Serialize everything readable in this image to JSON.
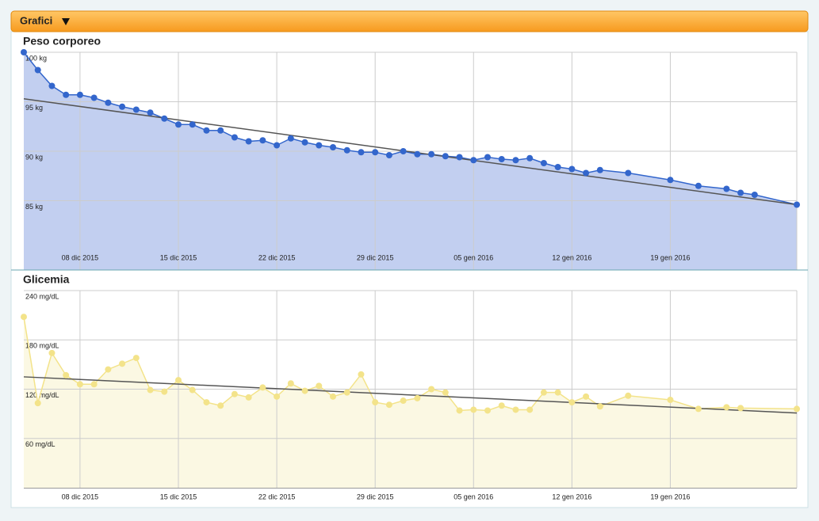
{
  "header": {
    "title": "Grafici"
  },
  "chart_data": [
    {
      "type": "line",
      "title": "Peso corporeo",
      "color": "#3366cc",
      "fill_color": "#c2cff0",
      "trend_color": "#555555",
      "x": [
        "2015-12-04",
        "2015-12-05",
        "2015-12-06",
        "2015-12-07",
        "2015-12-08",
        "2015-12-09",
        "2015-12-10",
        "2015-12-11",
        "2015-12-12",
        "2015-12-13",
        "2015-12-14",
        "2015-12-15",
        "2015-12-16",
        "2015-12-17",
        "2015-12-18",
        "2015-12-19",
        "2015-12-20",
        "2015-12-21",
        "2015-12-22",
        "2015-12-23",
        "2015-12-24",
        "2015-12-25",
        "2015-12-26",
        "2015-12-27",
        "2015-12-28",
        "2015-12-29",
        "2015-12-30",
        "2015-12-31",
        "2016-01-01",
        "2016-01-02",
        "2016-01-03",
        "2016-01-04",
        "2016-01-05",
        "2016-01-06",
        "2016-01-07",
        "2016-01-08",
        "2016-01-09",
        "2016-01-10",
        "2016-01-11",
        "2016-01-12",
        "2016-01-13",
        "2016-01-14",
        "2016-01-16",
        "2016-01-19",
        "2016-01-21",
        "2016-01-23",
        "2016-01-24",
        "2016-01-25",
        "2016-01-28"
      ],
      "values": [
        100,
        98.2,
        96.6,
        95.7,
        95.7,
        95.4,
        94.9,
        94.5,
        94.2,
        93.9,
        93.3,
        92.7,
        92.7,
        92.1,
        92.1,
        91.4,
        91.0,
        91.1,
        90.6,
        91.3,
        90.9,
        90.6,
        90.4,
        90.1,
        89.9,
        89.9,
        89.6,
        90.0,
        89.7,
        89.7,
        89.5,
        89.4,
        89.1,
        89.4,
        89.2,
        89.1,
        89.3,
        88.8,
        88.4,
        88.2,
        87.8,
        88.1,
        87.8,
        87.1,
        86.5,
        86.2,
        85.8,
        85.6,
        84.6
      ],
      "trend": [
        95.3,
        84.6
      ],
      "xlim": [
        "2015-12-04",
        "2016-01-28"
      ],
      "xticks": [
        {
          "value": "2015-12-08",
          "label": "08 dic 2015"
        },
        {
          "value": "2015-12-15",
          "label": "15 dic 2015"
        },
        {
          "value": "2015-12-22",
          "label": "22 dic 2015"
        },
        {
          "value": "2015-12-29",
          "label": "29 dic 2015"
        },
        {
          "value": "2016-01-05",
          "label": "05 gen 2016"
        },
        {
          "value": "2016-01-12",
          "label": "12 gen 2016"
        },
        {
          "value": "2016-01-19",
          "label": "19 gen 2016"
        }
      ],
      "ylim": [
        78,
        100
      ],
      "yticks": [
        {
          "value": 85,
          "label": "85 kg"
        },
        {
          "value": 90,
          "label": "90 kg"
        },
        {
          "value": 95,
          "label": "95 kg"
        },
        {
          "value": 100,
          "label": "100 kg"
        }
      ],
      "grid": true
    },
    {
      "type": "line",
      "title": "Glicemia",
      "color": "#f3e38a",
      "fill_color": "#fbf8e3",
      "trend_color": "#555555",
      "x": [
        "2015-12-04",
        "2015-12-05",
        "2015-12-06",
        "2015-12-07",
        "2015-12-08",
        "2015-12-09",
        "2015-12-10",
        "2015-12-11",
        "2015-12-12",
        "2015-12-13",
        "2015-12-14",
        "2015-12-15",
        "2015-12-16",
        "2015-12-17",
        "2015-12-18",
        "2015-12-19",
        "2015-12-20",
        "2015-12-21",
        "2015-12-22",
        "2015-12-23",
        "2015-12-24",
        "2015-12-25",
        "2015-12-26",
        "2015-12-27",
        "2015-12-28",
        "2015-12-29",
        "2015-12-30",
        "2015-12-31",
        "2016-01-01",
        "2016-01-02",
        "2016-01-03",
        "2016-01-04",
        "2016-01-05",
        "2016-01-06",
        "2016-01-07",
        "2016-01-08",
        "2016-01-09",
        "2016-01-10",
        "2016-01-11",
        "2016-01-12",
        "2016-01-13",
        "2016-01-14",
        "2016-01-16",
        "2016-01-19",
        "2016-01-21",
        "2016-01-23",
        "2016-01-24",
        "2016-01-28"
      ],
      "values": [
        208,
        103,
        164,
        137,
        126,
        126,
        144,
        151,
        158,
        119,
        117,
        131,
        119,
        104,
        100,
        114,
        110,
        122,
        111,
        127,
        118,
        124,
        111,
        116,
        138,
        104,
        101,
        106,
        109,
        120,
        116,
        94,
        95,
        94,
        100,
        95,
        95,
        116,
        116,
        104,
        111,
        99,
        112,
        107,
        96,
        98,
        97,
        96
      ],
      "trend": [
        135,
        91
      ],
      "xlim": [
        "2015-12-04",
        "2016-01-28"
      ],
      "xticks": [
        {
          "value": "2015-12-08",
          "label": "08 dic 2015"
        },
        {
          "value": "2015-12-15",
          "label": "15 dic 2015"
        },
        {
          "value": "2015-12-22",
          "label": "22 dic 2015"
        },
        {
          "value": "2015-12-29",
          "label": "29 dic 2015"
        },
        {
          "value": "2016-01-05",
          "label": "05 gen 2016"
        },
        {
          "value": "2016-01-12",
          "label": "12 gen 2016"
        },
        {
          "value": "2016-01-19",
          "label": "19 gen 2016"
        }
      ],
      "ylim": [
        0,
        240
      ],
      "yticks": [
        {
          "value": 60,
          "label": "60 mg/dL"
        },
        {
          "value": 120,
          "label": "120 mg/dL"
        },
        {
          "value": 180,
          "label": "180 mg/dL"
        },
        {
          "value": 240,
          "label": "240 mg/dL"
        }
      ],
      "grid": true
    }
  ]
}
